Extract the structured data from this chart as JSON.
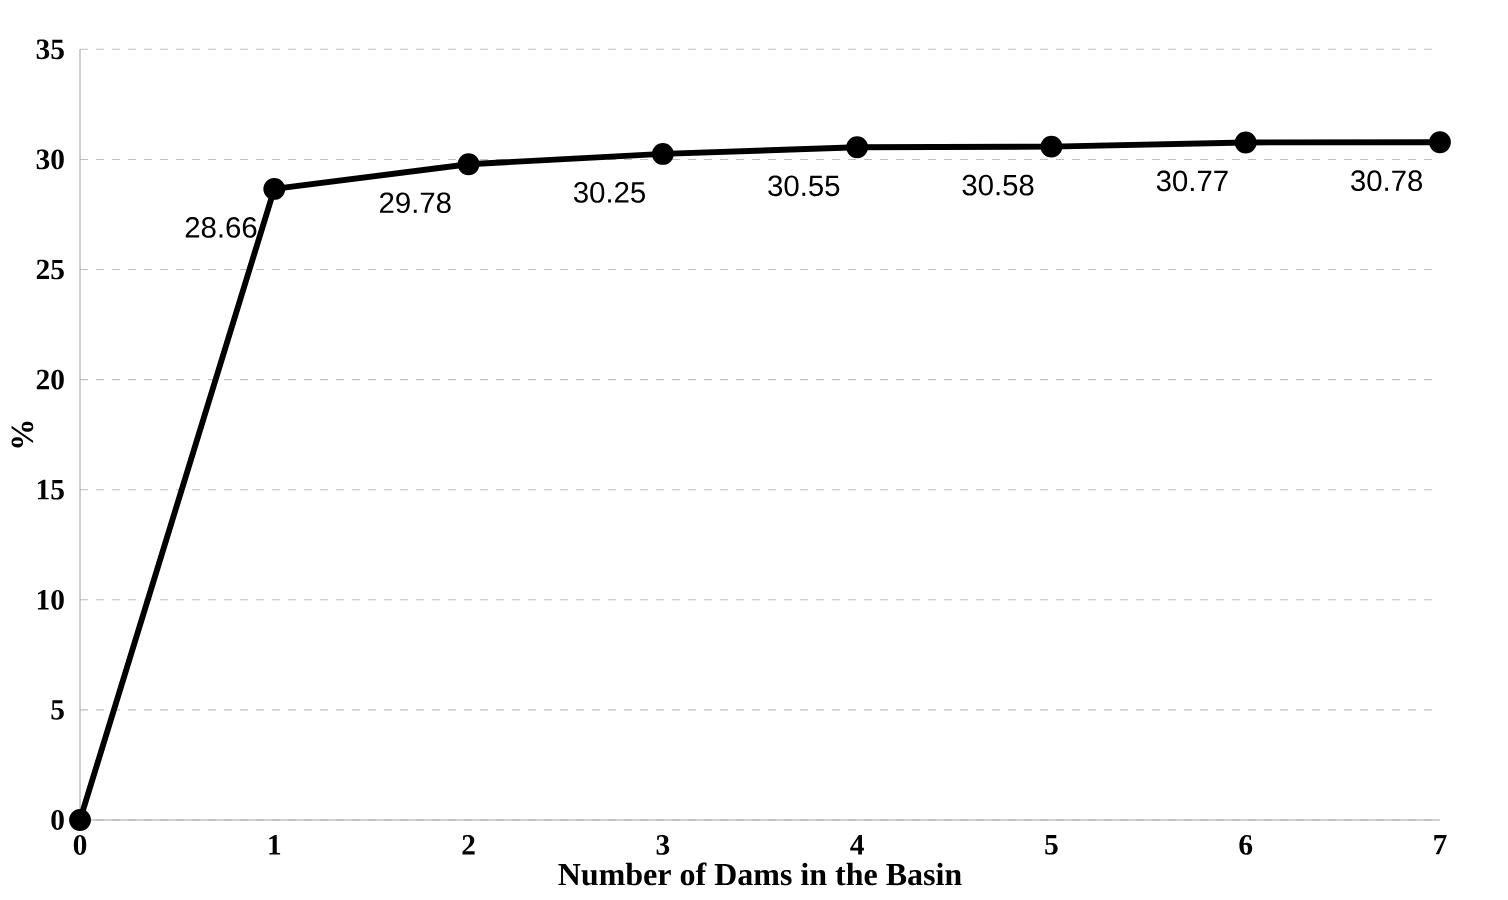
{
  "chart_data": {
    "type": "line",
    "xlabel": "Number of Dams in the Basin",
    "ylabel": "%",
    "x": [
      0,
      1,
      2,
      3,
      4,
      5,
      6,
      7
    ],
    "series": [
      {
        "color": "#000000",
        "values": [
          0,
          28.66,
          29.78,
          30.25,
          30.55,
          30.58,
          30.77,
          30.78
        ],
        "value_labels": [
          null,
          "28.66",
          "29.78",
          "30.25",
          "30.55",
          "30.58",
          "30.77",
          "30.78"
        ]
      }
    ],
    "xlim": [
      0,
      7
    ],
    "ylim": [
      0,
      35
    ],
    "xticks": [
      0,
      1,
      2,
      3,
      4,
      5,
      6,
      7
    ],
    "yticks": [
      0,
      5,
      10,
      15,
      20,
      25,
      30,
      35
    ],
    "grid": "y",
    "marker": "circle",
    "line_style": "solid"
  }
}
